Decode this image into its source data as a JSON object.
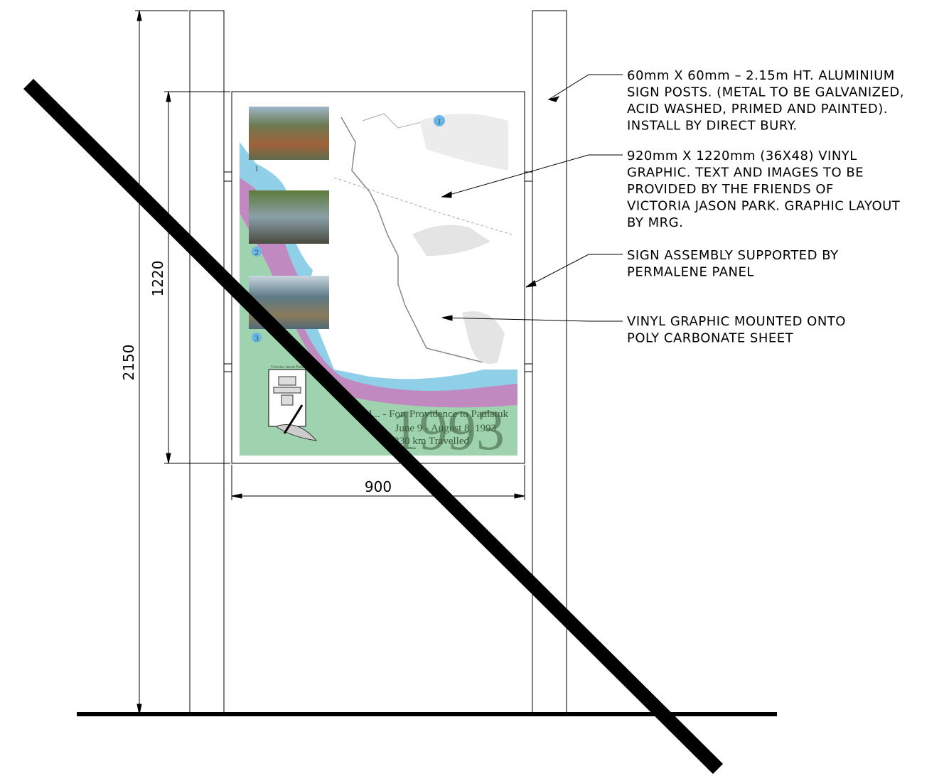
{
  "dimensions": {
    "height_total": "2150",
    "panel_height": "1220",
    "panel_width": "900"
  },
  "notes": [
    {
      "lines": [
        "60mm X 60mm – 2.15m HT. ALUMINIUM",
        "SIGN POSTS. (METAL TO BE GALVANIZED,",
        "ACID WASHED, PRIMED AND PAINTED).",
        "INSTALL BY DIRECT BURY."
      ]
    },
    {
      "lines": [
        "920mm X 1220mm (36X48) VINYL",
        "GRAPHIC. TEXT AND IMAGES TO BE",
        "PROVIDED BY THE FRIENDS OF",
        "VICTORIA JASON PARK. GRAPHIC LAYOUT",
        "BY MRG."
      ]
    },
    {
      "lines": [
        "SIGN ASSEMBLY SUPPORTED BY",
        "PERMALENE PANEL"
      ]
    },
    {
      "lines": [
        "VINYL GRAPHIC MOUNTED ONTO",
        "POLY CARBONATE SHEET"
      ]
    }
  ],
  "graphic": {
    "photo_numbers": [
      "1",
      "2",
      "3"
    ],
    "logo_caption": "Victoria Jason Park",
    "caption_lines": [
      "J... - Fort Providence to Paulatuk",
      "June 9 - August 8, 1993",
      "...330 km Travelled"
    ],
    "year": "1993"
  }
}
